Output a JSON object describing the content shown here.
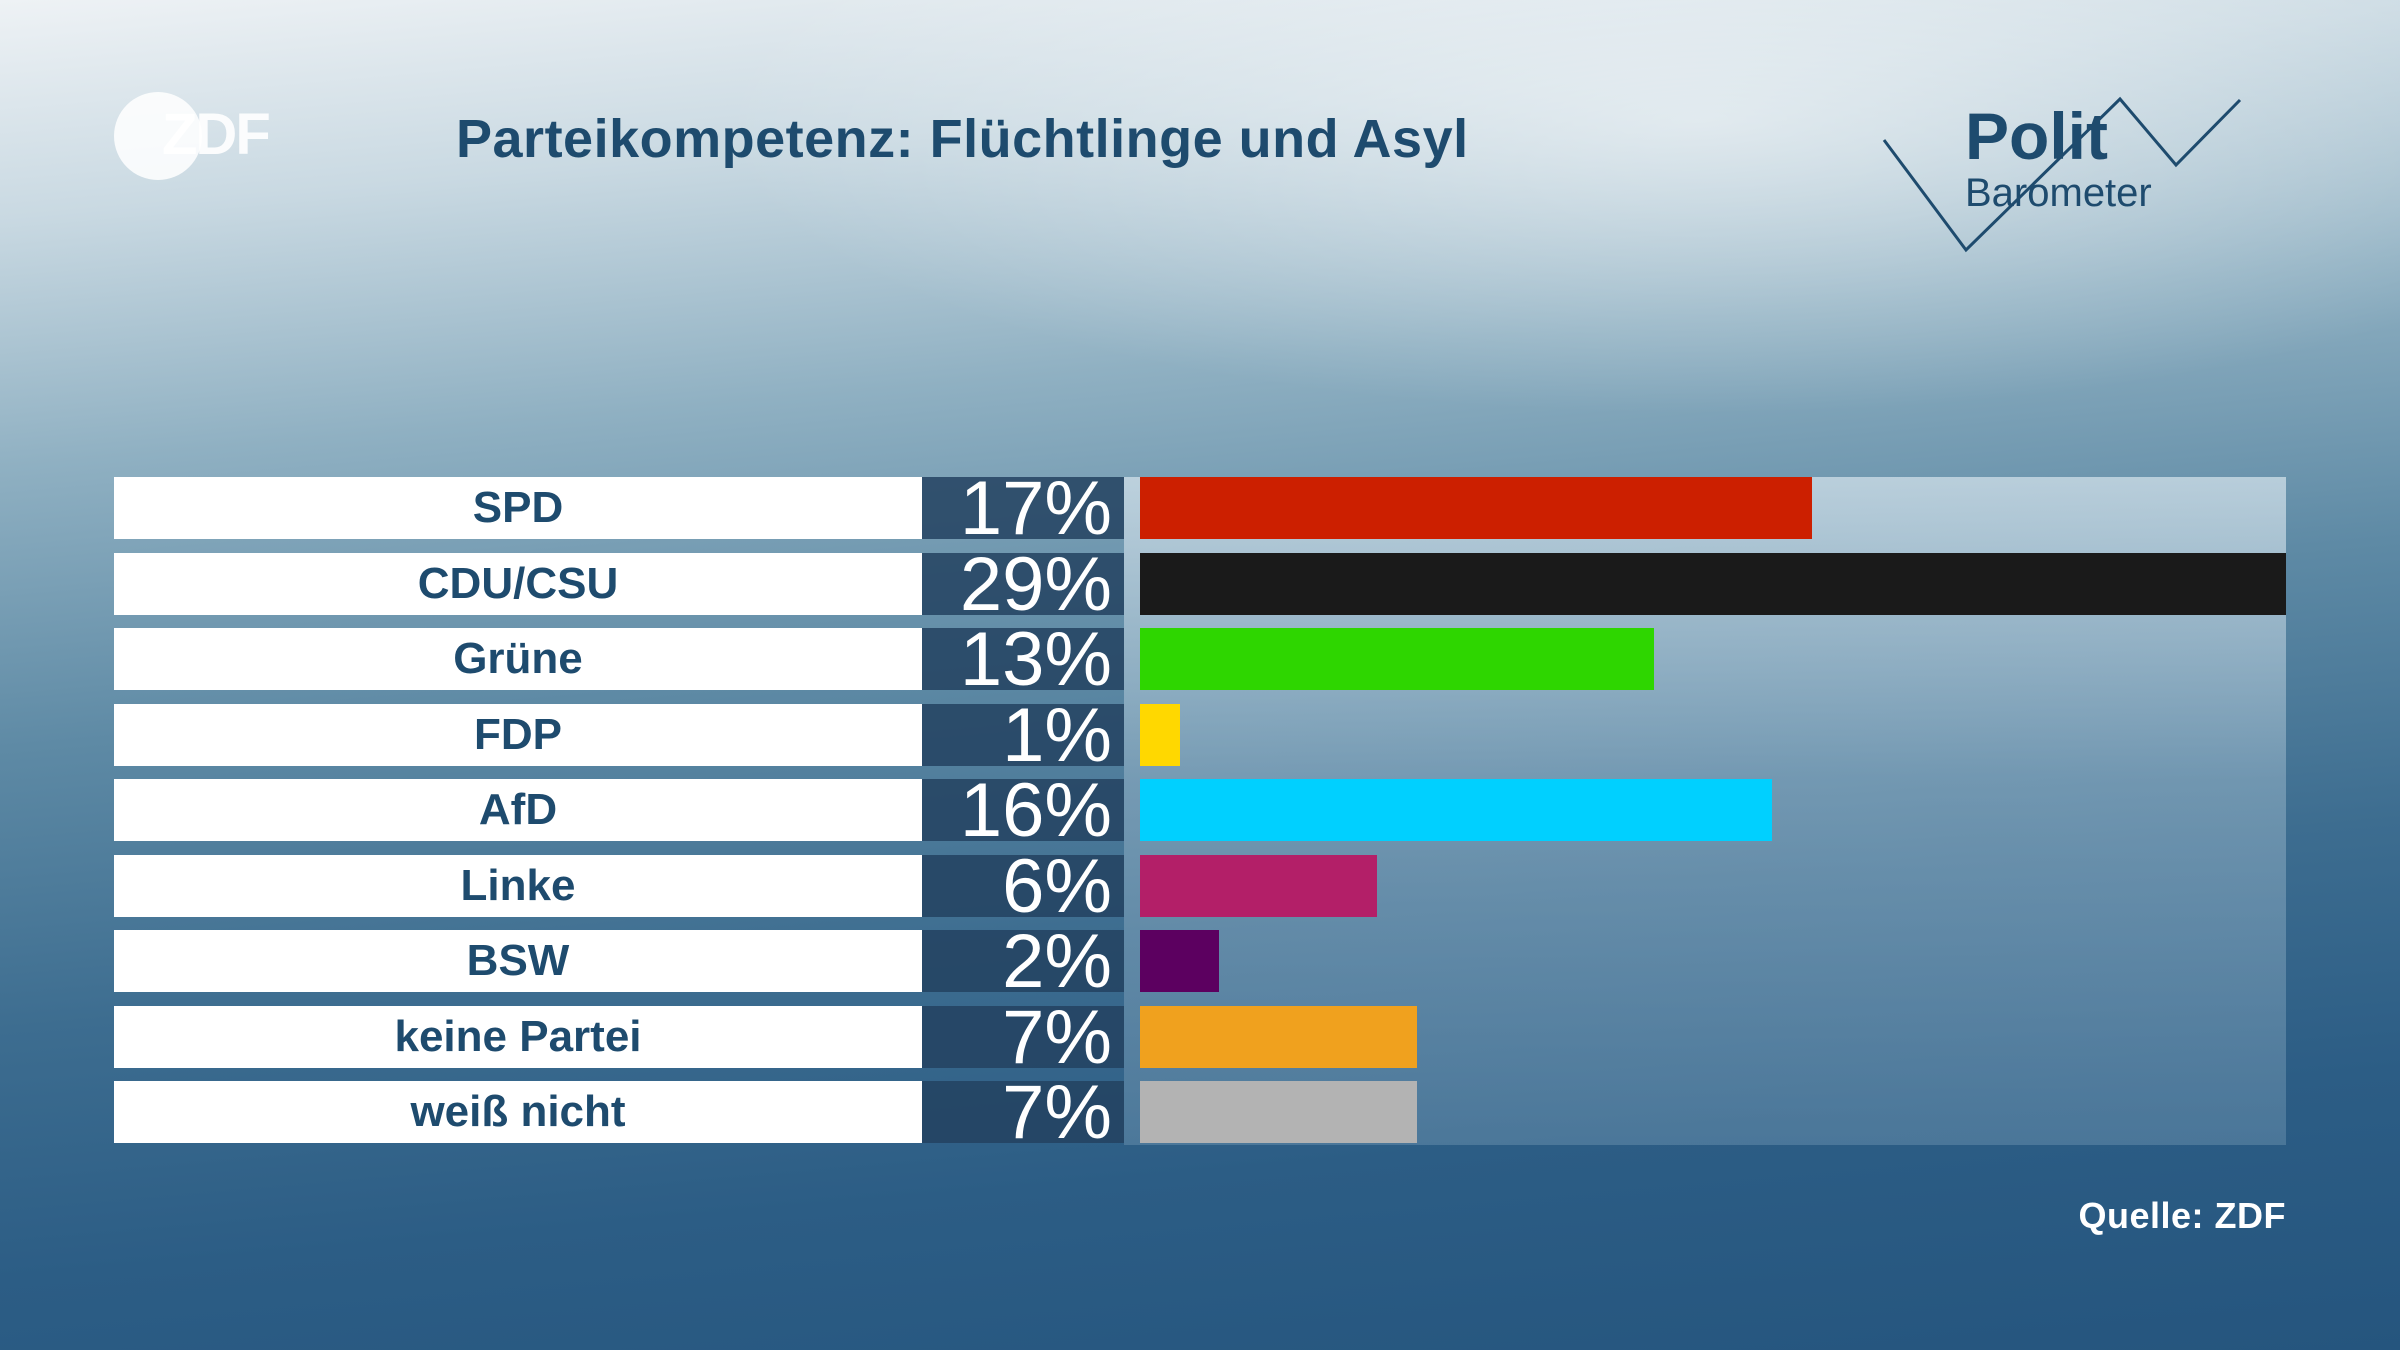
{
  "brand": {
    "logo_text": "ZDF",
    "program_logo_line1": "Polit",
    "program_logo_line2": "Barometer"
  },
  "title": "Parteikompetenz: Flüchtlinge und Asyl",
  "source": "Quelle: ZDF",
  "chart_data": {
    "type": "bar",
    "orientation": "horizontal",
    "title": "Parteikompetenz: Flüchtlinge und Asyl",
    "categories": [
      "SPD",
      "CDU/CSU",
      "Grüne",
      "FDP",
      "AfD",
      "Linke",
      "BSW",
      "keine Partei",
      "weiß nicht"
    ],
    "values": [
      17,
      29,
      13,
      1,
      16,
      6,
      2,
      7,
      7
    ],
    "value_labels": [
      "17%",
      "29%",
      "13%",
      "1%",
      "16%",
      "6%",
      "2%",
      "7%",
      "7%"
    ],
    "colors": [
      "#cc1f00",
      "#1a1a1a",
      "#2ed600",
      "#ffd800",
      "#00d0ff",
      "#b31f68",
      "#5c0060",
      "#f0a11e",
      "#b3b3b3"
    ],
    "unit": "%",
    "xlim": [
      0,
      29
    ],
    "grid": false,
    "legend": "none"
  }
}
